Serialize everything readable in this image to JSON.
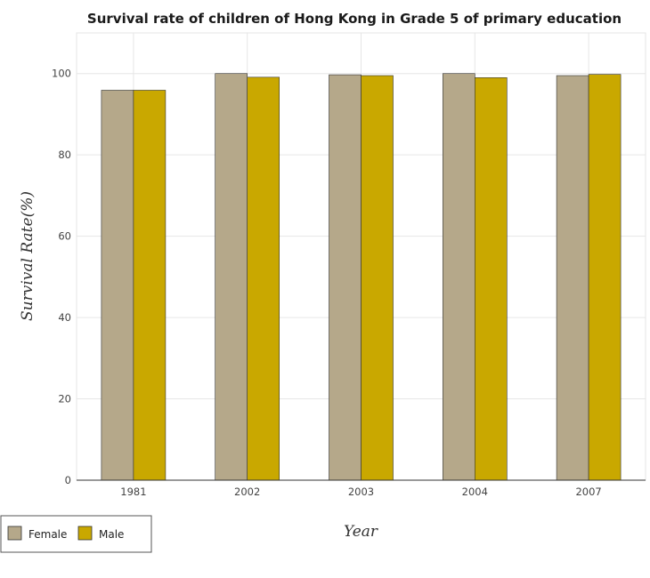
{
  "chart_data": {
    "type": "bar",
    "title": "Survival rate of children of Hong Kong in Grade 5 of primary education",
    "xlabel": "Year",
    "ylabel": "Survival Rate(%)",
    "categories": [
      "1981",
      "2002",
      "2003",
      "2004",
      "2007"
    ],
    "series": [
      {
        "name": "Female",
        "color": "#b5a88a",
        "values": [
          95.9,
          100.0,
          99.7,
          100.0,
          99.5
        ]
      },
      {
        "name": "Male",
        "color": "#c9a800",
        "values": [
          95.9,
          99.1,
          99.5,
          99.0,
          99.8
        ]
      }
    ],
    "ylim": [
      0,
      110
    ],
    "yticks": [
      0,
      20,
      40,
      60,
      80,
      100
    ],
    "grid": true,
    "legend_position": "bottom-left"
  }
}
